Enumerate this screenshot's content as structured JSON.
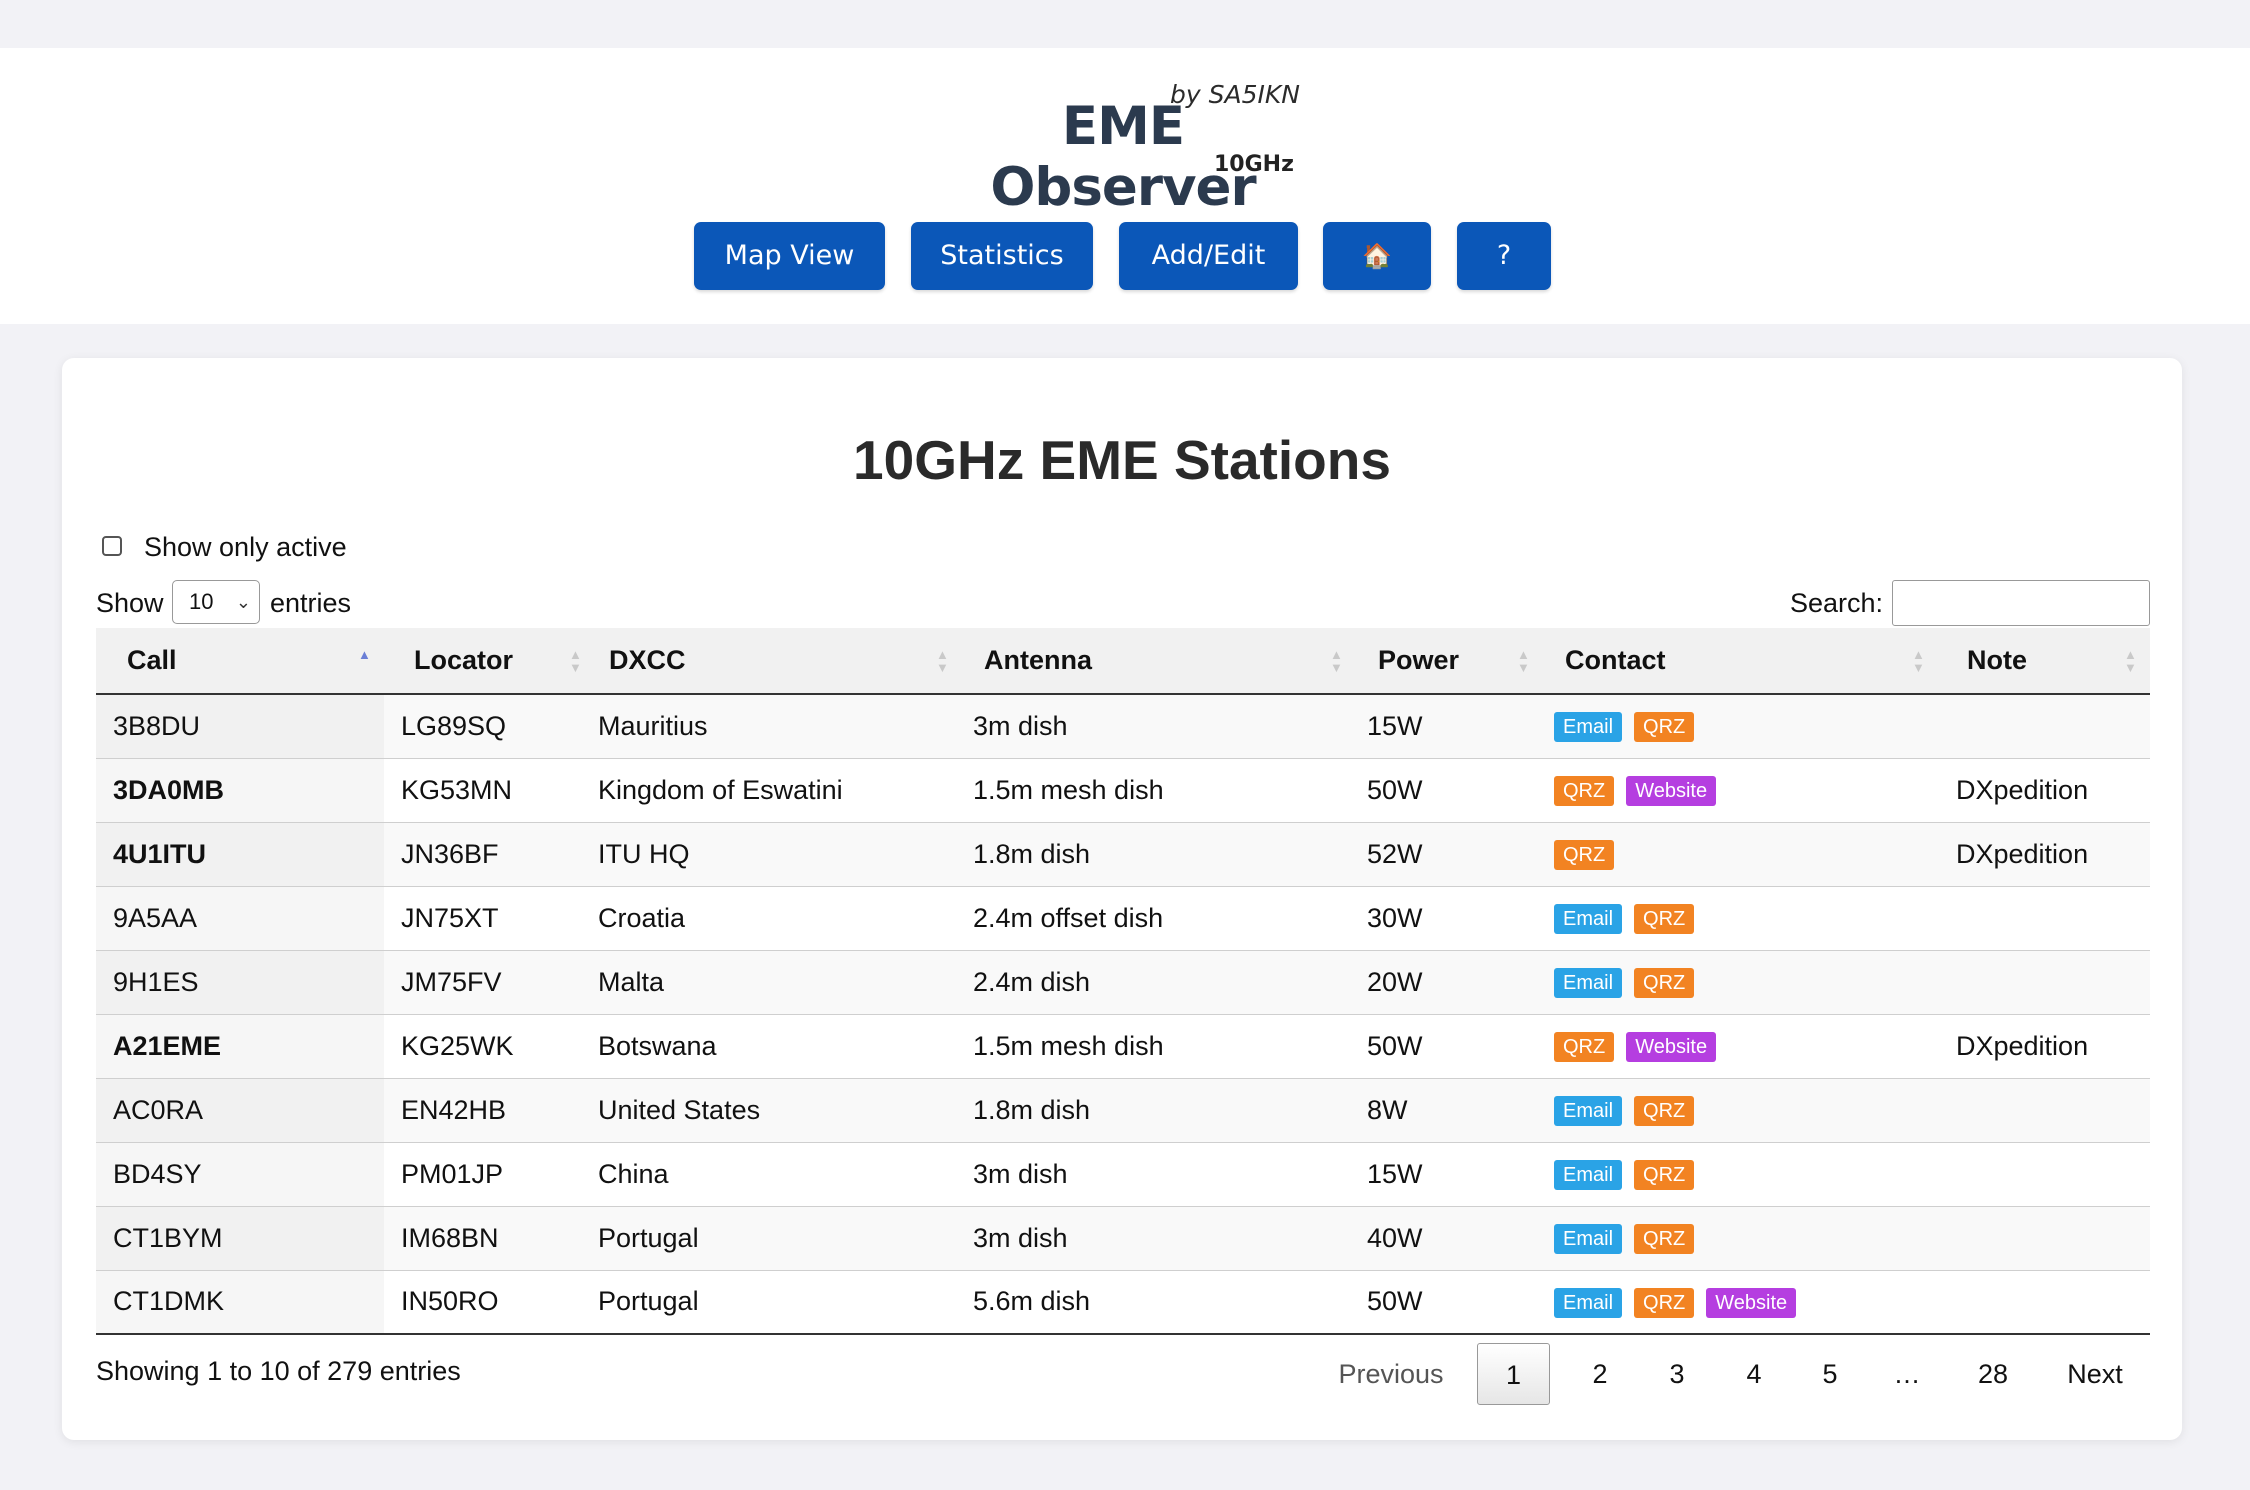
{
  "header": {
    "by": "by SA5IKN",
    "title": "EME Observer",
    "band": "10GHz",
    "nav": [
      {
        "label": "Map View"
      },
      {
        "label": "Statistics"
      },
      {
        "label": "Add/Edit"
      },
      {
        "label": "🏠",
        "icon": "home-icon"
      },
      {
        "label": "?"
      }
    ]
  },
  "main": {
    "title": "10GHz EME Stations",
    "filter_label": "Show only active",
    "filter_checked": false,
    "length": {
      "prefix": "Show",
      "value": "10",
      "suffix": "entries"
    },
    "search": {
      "label": "Search:",
      "value": ""
    },
    "columns": [
      "Call",
      "Locator",
      "DXCC",
      "Antenna",
      "Power",
      "Contact",
      "Note"
    ],
    "sort": {
      "column": "Call",
      "direction": "ascending"
    },
    "rows": [
      {
        "call": "3B8DU",
        "bold": false,
        "locator": "LG89SQ",
        "dxcc": "Mauritius",
        "antenna": "3m dish",
        "power": "15W",
        "contact": [
          "Email",
          "QRZ"
        ],
        "note": ""
      },
      {
        "call": "3DA0MB",
        "bold": true,
        "locator": "KG53MN",
        "dxcc": "Kingdom of Eswatini",
        "antenna": "1.5m mesh dish",
        "power": "50W",
        "contact": [
          "QRZ",
          "Website"
        ],
        "note": "DXpedition"
      },
      {
        "call": "4U1ITU",
        "bold": true,
        "locator": "JN36BF",
        "dxcc": "ITU HQ",
        "antenna": "1.8m dish",
        "power": "52W",
        "contact": [
          "QRZ"
        ],
        "note": "DXpedition"
      },
      {
        "call": "9A5AA",
        "bold": false,
        "locator": "JN75XT",
        "dxcc": "Croatia",
        "antenna": "2.4m offset dish",
        "power": "30W",
        "contact": [
          "Email",
          "QRZ"
        ],
        "note": ""
      },
      {
        "call": "9H1ES",
        "bold": false,
        "locator": "JM75FV",
        "dxcc": "Malta",
        "antenna": "2.4m dish",
        "power": "20W",
        "contact": [
          "Email",
          "QRZ"
        ],
        "note": ""
      },
      {
        "call": "A21EME",
        "bold": true,
        "locator": "KG25WK",
        "dxcc": "Botswana",
        "antenna": "1.5m mesh dish",
        "power": "50W",
        "contact": [
          "QRZ",
          "Website"
        ],
        "note": "DXpedition"
      },
      {
        "call": "AC0RA",
        "bold": false,
        "locator": "EN42HB",
        "dxcc": "United States",
        "antenna": "1.8m dish",
        "power": "8W",
        "contact": [
          "Email",
          "QRZ"
        ],
        "note": ""
      },
      {
        "call": "BD4SY",
        "bold": false,
        "locator": "PM01JP",
        "dxcc": "China",
        "antenna": "3m dish",
        "power": "15W",
        "contact": [
          "Email",
          "QRZ"
        ],
        "note": ""
      },
      {
        "call": "CT1BYM",
        "bold": false,
        "locator": "IM68BN",
        "dxcc": "Portugal",
        "antenna": "3m dish",
        "power": "40W",
        "contact": [
          "Email",
          "QRZ"
        ],
        "note": ""
      },
      {
        "call": "CT1DMK",
        "bold": false,
        "locator": "IN50RO",
        "dxcc": "Portugal",
        "antenna": "5.6m dish",
        "power": "50W",
        "contact": [
          "Email",
          "QRZ",
          "Website"
        ],
        "note": ""
      }
    ],
    "info": "Showing 1 to 10 of 279 entries",
    "pagination": {
      "previous": "Previous",
      "pages": [
        "1",
        "2",
        "3",
        "4",
        "5",
        "…",
        "28"
      ],
      "current": "1",
      "next": "Next"
    }
  },
  "colors": {
    "nav_button": "#0b57b8",
    "email_badge": "#2aa3e6",
    "qrz_badge": "#f28322",
    "website_badge": "#b53ee0",
    "sort_active": "#6b7fd6"
  }
}
